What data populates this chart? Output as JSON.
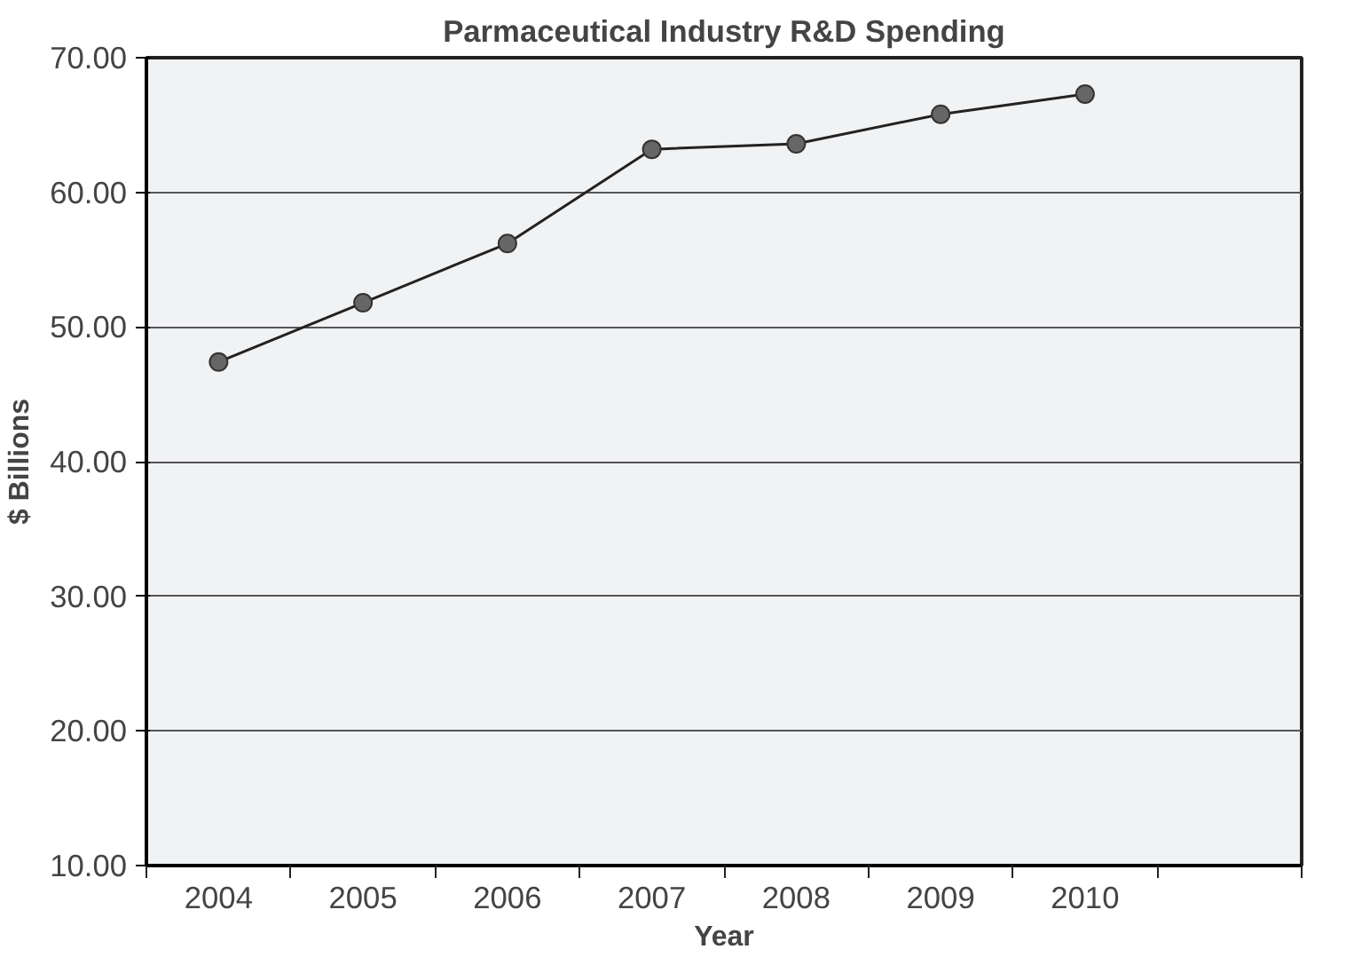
{
  "chart_data": {
    "type": "line",
    "title": "Parmaceutical Industry R&D Spending",
    "xlabel": "Year",
    "ylabel": "$ Billions",
    "categories": [
      "2004",
      "2005",
      "2006",
      "2007",
      "2008",
      "2009",
      "2010",
      null
    ],
    "series": [
      {
        "color": "#666666",
        "values": [
          47.4,
          51.8,
          56.2,
          63.2,
          63.6,
          65.8,
          67.3,
          null
        ]
      }
    ],
    "ylim": [
      10,
      70
    ],
    "yticks": [
      {
        "value": 10,
        "label": "10.00"
      },
      {
        "value": 20,
        "label": "20.00"
      },
      {
        "value": 30,
        "label": "30.00"
      },
      {
        "value": 40,
        "label": "40.00"
      },
      {
        "value": 50,
        "label": "50.00"
      },
      {
        "value": 60,
        "label": "60.00"
      },
      {
        "value": 70,
        "label": "70.00"
      }
    ],
    "grid": "y",
    "marker": "circle"
  }
}
